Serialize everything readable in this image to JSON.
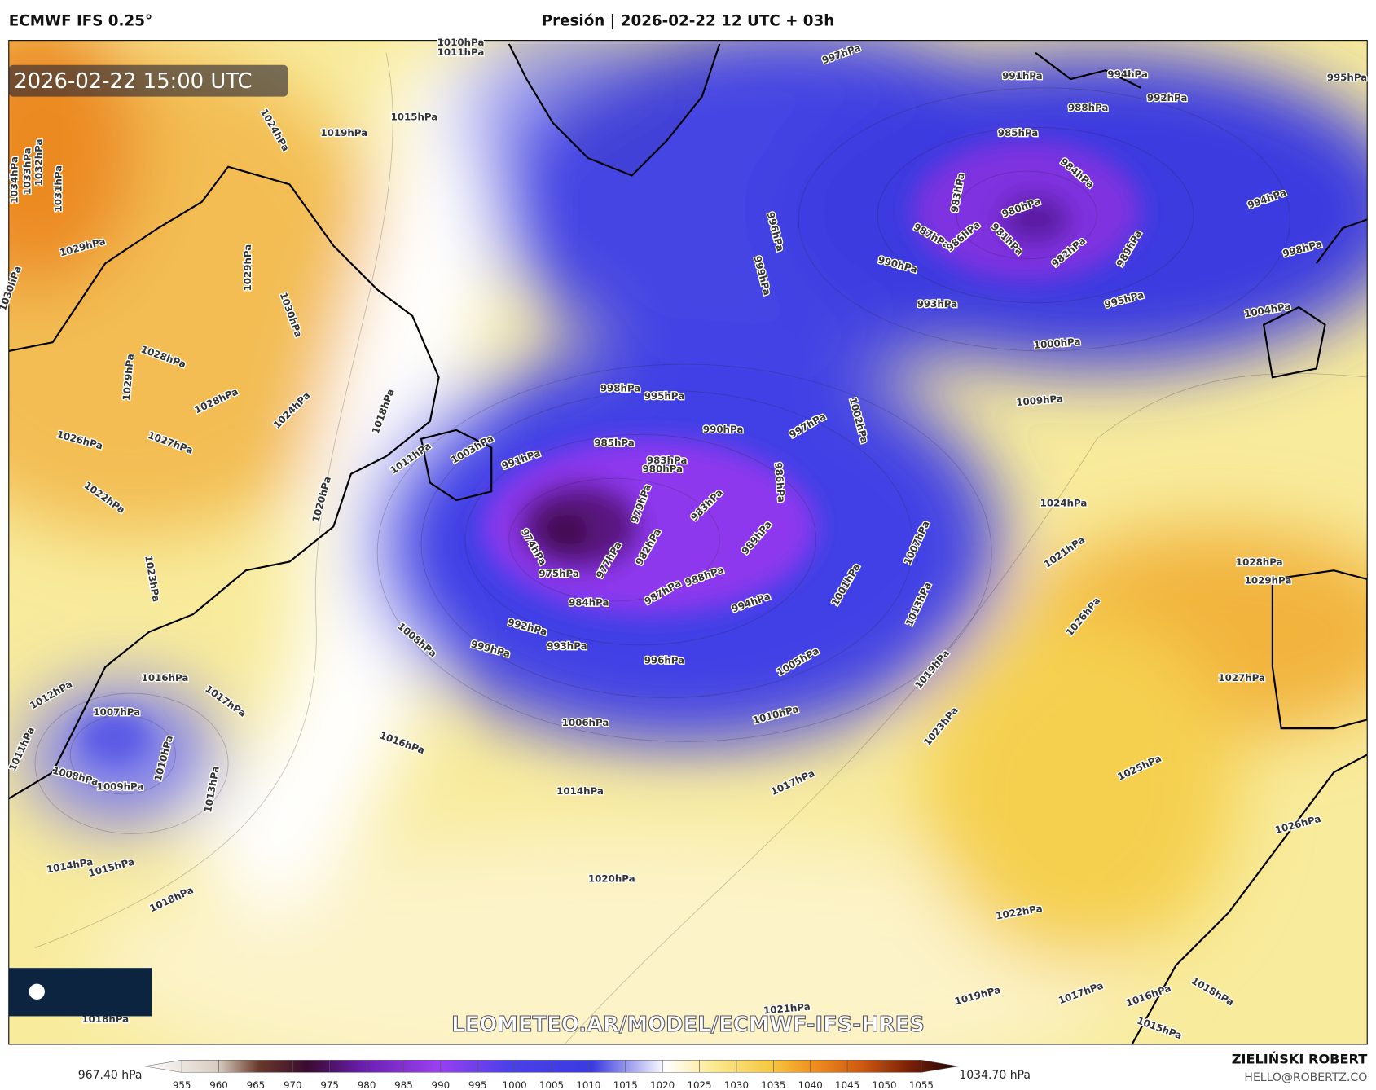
{
  "header": {
    "model": "ECMWF IFS 0.25°",
    "title": "Presión | 2026-02-22 12 UTC + 03h",
    "valid_time": "2026-02-22 15:00 UTC"
  },
  "watermark": "LEOMETEO.AR/MODEL/ECMWF-IFS-HRES",
  "author": {
    "name": "ZIELIŃSKI ROBERT",
    "email": "HELLO@ROBERTZ.CO"
  },
  "colorbar": {
    "min_label": "967.40 hPa",
    "max_label": "1034.70 hPa",
    "lim": [
      950,
      1060
    ],
    "ticks": [
      955,
      960,
      965,
      970,
      975,
      980,
      985,
      990,
      995,
      1000,
      1005,
      1010,
      1015,
      1020,
      1025,
      1030,
      1035,
      1040,
      1045,
      1050,
      1055
    ]
  },
  "isobar_labels": [
    "1010hPa",
    "1011hPa",
    "1015hPa",
    "1019hPa",
    "1024hPa",
    "997hPa",
    "991hPa",
    "994hPa",
    "992hPa",
    "995hPa",
    "988hPa",
    "985hPa",
    "984hPa",
    "980hPa",
    "983hPa",
    "987hPa",
    "986hPa",
    "981hPa",
    "982hPa",
    "989hPa",
    "990hPa",
    "993hPa",
    "995hPa",
    "1000hPa",
    "994hPa",
    "998hPa",
    "1004hPa",
    "1009hPa",
    "996hPa",
    "999hPa",
    "998hPa",
    "995hPa",
    "990hPa",
    "985hPa",
    "983hPa",
    "980hPa",
    "997hPa",
    "1002hPa",
    "991hPa",
    "1003hPa",
    "1011hPa",
    "1018hPa",
    "1020hPa",
    "979hPa",
    "983hPa",
    "986hPa",
    "982hPa",
    "989hPa",
    "977hPa",
    "975hPa",
    "974hPa",
    "984hPa",
    "987hPa",
    "988hPa",
    "994hPa",
    "1001hPa",
    "1007hPa",
    "1013hPa",
    "992hPa",
    "993hPa",
    "999hPa",
    "996hPa",
    "1005hPa",
    "1008hPa",
    "1010hPa",
    "1006hPa",
    "1014hPa",
    "1016hPa",
    "1017hPa",
    "1016hPa",
    "1017hPa",
    "1007hPa",
    "1011hPa",
    "1008hPa",
    "1009hPa",
    "1010hPa",
    "1013hPa",
    "1014hPa",
    "1015hPa",
    "1018hPa",
    "1020hPa",
    "1019hPa",
    "1023hPa",
    "1021hPa",
    "1024hPa",
    "1026hPa",
    "1025hPa",
    "1022hPa",
    "1028hPa",
    "1029hPa",
    "1027hPa",
    "1026hPa",
    "1019hPa",
    "1017hPa",
    "1016hPa",
    "1018hPa",
    "1021hPa",
    "1015hPa",
    "1018hPa",
    "1034hPa",
    "1033hPa",
    "1032hPa",
    "1031hPa",
    "1029hPa",
    "1030hPa",
    "1028hPa",
    "1029hPa",
    "1028hPa",
    "1026hPa",
    "1027hPa",
    "1022hPa",
    "1024hPa",
    "1029hPa",
    "1030hPa",
    "1023hPa",
    "1012hPa"
  ]
}
